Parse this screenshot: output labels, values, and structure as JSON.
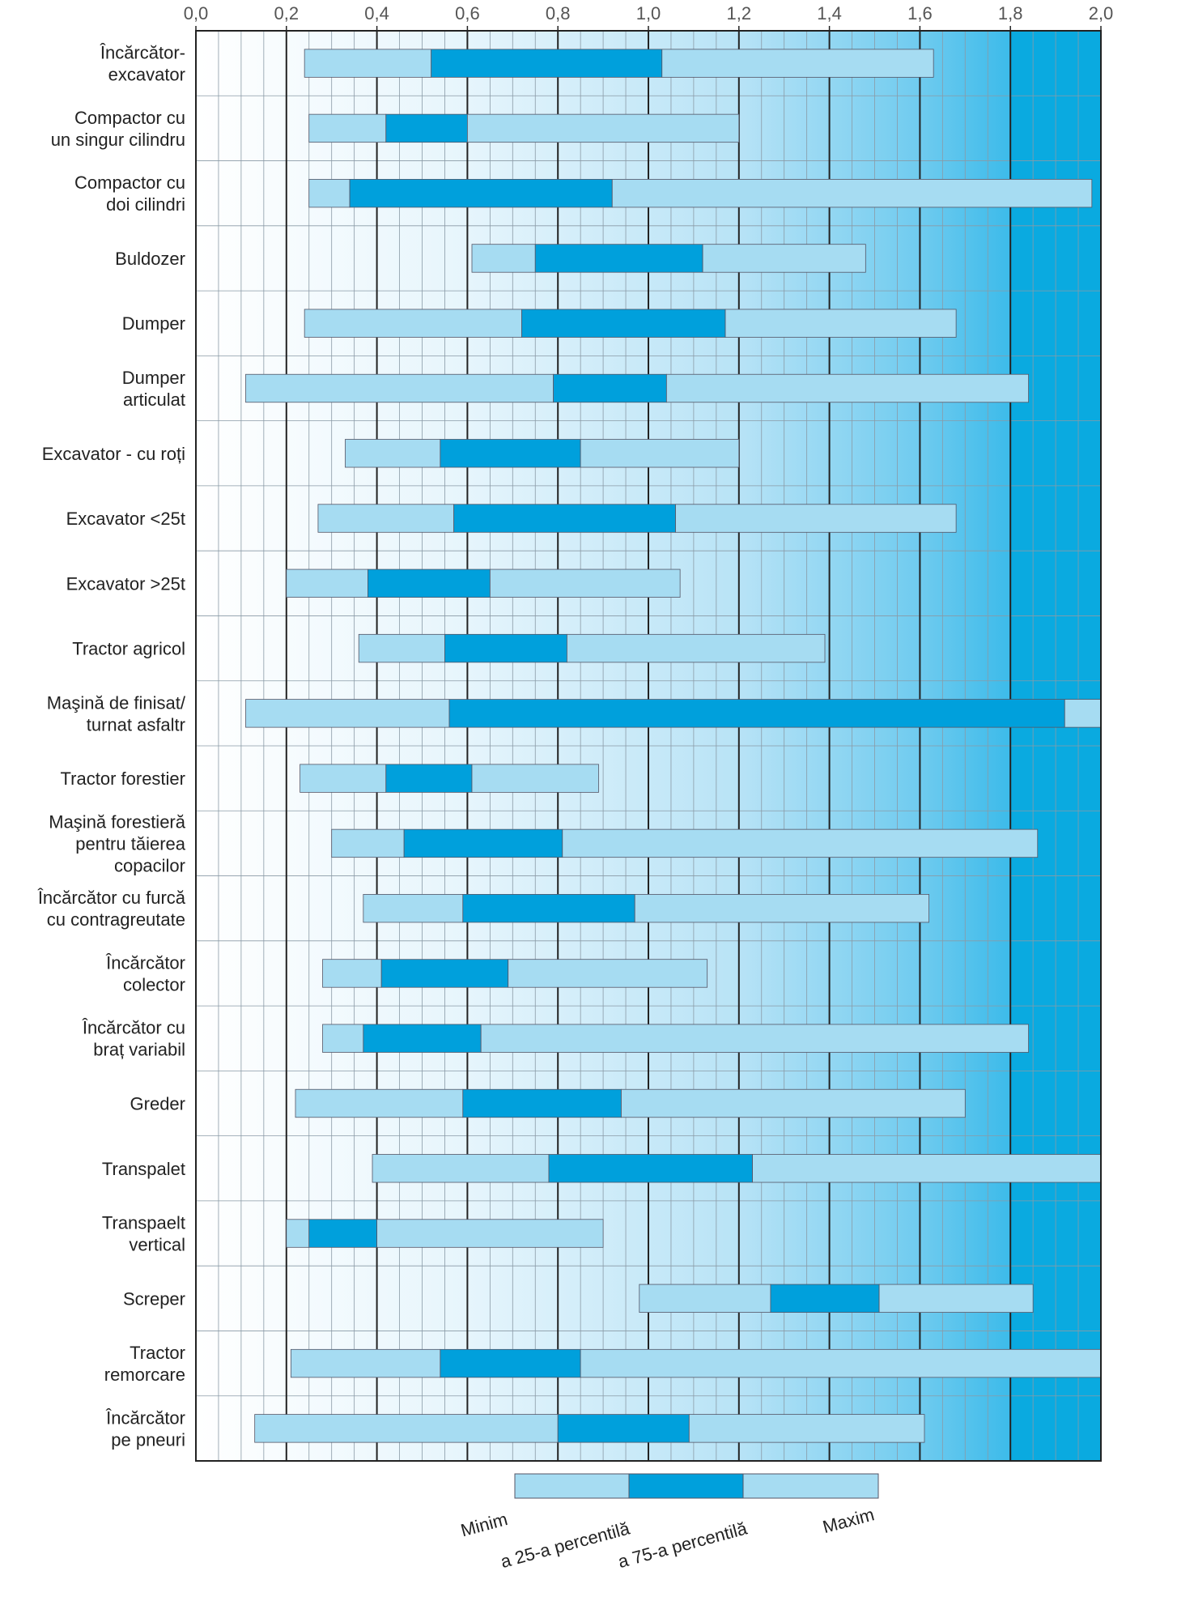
{
  "chart_data": {
    "type": "range_bar",
    "categories": [
      [
        "Încărcător-",
        "excavator"
      ],
      [
        "Compactor  cu",
        "un singur cilindru"
      ],
      [
        "Compactor cu",
        "doi cilindri"
      ],
      [
        "Buldozer"
      ],
      [
        "Dumper"
      ],
      [
        "Dumper",
        "articulat"
      ],
      [
        "Excavator - cu roți"
      ],
      [
        "Excavator <25t"
      ],
      [
        "Excavator >25t"
      ],
      [
        "Tractor agricol"
      ],
      [
        "Maşină de finisat/",
        "turnat asfaltr"
      ],
      [
        "Tractor forestier"
      ],
      [
        "Maşină forestieră",
        "pentru tăierea",
        "copacilor"
      ],
      [
        "Încărcător cu furcă",
        "cu contragreutate"
      ],
      [
        "Încărcător",
        "colector"
      ],
      [
        "Încărcător cu",
        "braț variabil"
      ],
      [
        "Greder"
      ],
      [
        "Transpalet"
      ],
      [
        "Transpaelt",
        "vertical"
      ],
      [
        "Screper"
      ],
      [
        "Tractor",
        "remorcare"
      ],
      [
        "Încărcător",
        "pe pneuri"
      ]
    ],
    "series": [
      {
        "name": "Minim",
        "color": "#a6dcf2",
        "values": [
          0.24,
          0.25,
          0.25,
          0.61,
          0.24,
          0.11,
          0.33,
          0.27,
          0.2,
          0.36,
          0.11,
          0.23,
          0.3,
          0.37,
          0.28,
          0.28,
          0.22,
          0.39,
          0.2,
          0.98,
          0.21,
          0.13
        ]
      },
      {
        "name": "a 25-a percentilă",
        "color": "#00a0dc",
        "values": [
          0.52,
          0.42,
          0.34,
          0.75,
          0.72,
          0.79,
          0.54,
          0.57,
          0.38,
          0.55,
          0.56,
          0.42,
          0.46,
          0.59,
          0.41,
          0.37,
          0.59,
          0.78,
          0.25,
          1.27,
          0.54,
          0.8
        ]
      },
      {
        "name": "a 75-a percentilă",
        "color": "#a6dcf2",
        "values": [
          1.03,
          0.6,
          0.92,
          1.12,
          1.17,
          1.04,
          0.85,
          1.06,
          0.65,
          0.82,
          1.92,
          0.61,
          0.81,
          0.97,
          0.69,
          0.63,
          0.94,
          1.23,
          0.4,
          1.51,
          0.85,
          1.09
        ]
      },
      {
        "name": "Maxim",
        "color": "#a6dcf2",
        "values": [
          1.63,
          1.2,
          1.98,
          1.48,
          1.68,
          1.84,
          1.2,
          1.68,
          1.07,
          1.39,
          2.0,
          0.89,
          1.86,
          1.62,
          1.13,
          1.84,
          1.7,
          2.0,
          0.9,
          1.85,
          2.0,
          1.61
        ]
      }
    ],
    "xlim": [
      0,
      2.0
    ],
    "xticks": [
      {
        "value": 0,
        "label": "0,0"
      },
      {
        "value": 0.2,
        "label": "0,2"
      },
      {
        "value": 0.4,
        "label": "0,4"
      },
      {
        "value": 0.6,
        "label": "0,6"
      },
      {
        "value": 0.8,
        "label": "0,8"
      },
      {
        "value": 1.0,
        "label": "1,0"
      },
      {
        "value": 1.2,
        "label": "1,2"
      },
      {
        "value": 1.4,
        "label": "1,4"
      },
      {
        "value": 1.6,
        "label": "1,6"
      },
      {
        "value": 1.8,
        "label": "1,8"
      },
      {
        "value": 2.0,
        "label": "2,0"
      }
    ],
    "grid": true,
    "minor_grid_divisions": 4
  }
}
